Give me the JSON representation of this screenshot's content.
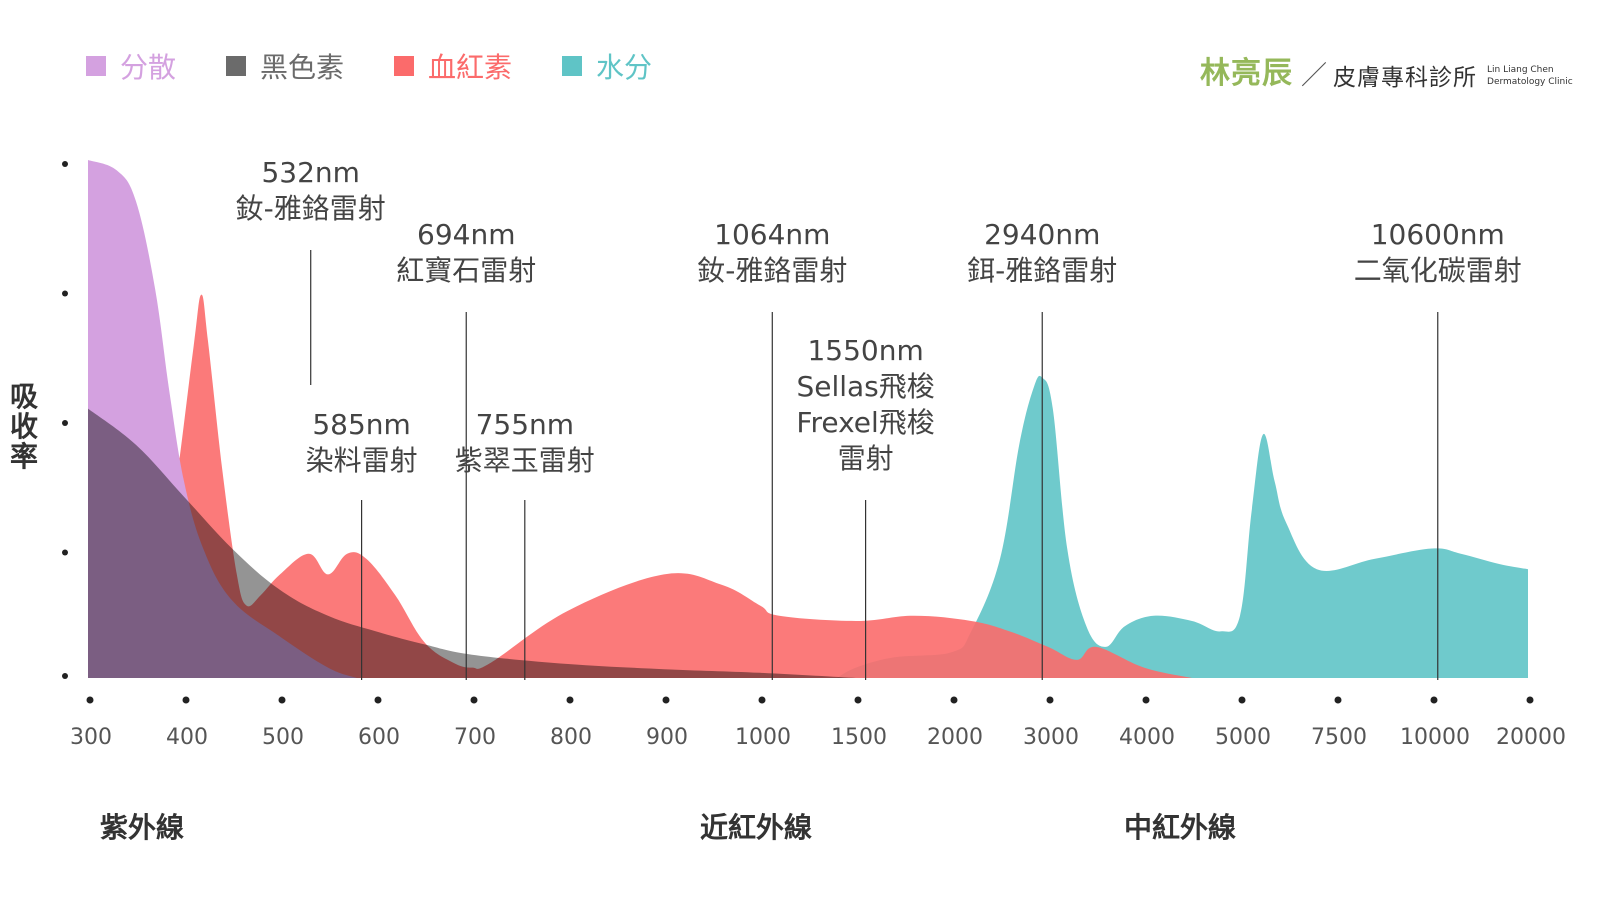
{
  "legend": [
    {
      "label": "分散",
      "color": "#d4a1e0"
    },
    {
      "label": "黑色素",
      "color": "#6b6b6b"
    },
    {
      "label": "血紅素",
      "color": "#fb6b6b"
    },
    {
      "label": "水分",
      "color": "#5fc4c6"
    }
  ],
  "brand": {
    "name": "林亮辰",
    "clinic": "皮膚專科診所",
    "en_line1": "Lin Liang Chen",
    "en_line2": "Dermatology Clinic"
  },
  "ylabel": "吸收率",
  "regions": [
    "紫外線",
    "近紅外線",
    "中紅外線"
  ],
  "chart_data": {
    "type": "area",
    "x_ticks": [
      "300",
      "400",
      "500",
      "600",
      "700",
      "800",
      "900",
      "1000",
      "1500",
      "2000",
      "3000",
      "4000",
      "5000",
      "7500",
      "10000",
      "20000"
    ],
    "x_scale": "piecewise",
    "y_tick_labels": false,
    "series": [
      {
        "name": "分散",
        "color": "#d4a1e0",
        "points": [
          [
            300,
            1.0
          ],
          [
            330,
            0.98
          ],
          [
            350,
            0.92
          ],
          [
            370,
            0.75
          ],
          [
            385,
            0.55
          ],
          [
            400,
            0.38
          ],
          [
            420,
            0.25
          ],
          [
            450,
            0.15
          ],
          [
            500,
            0.08
          ],
          [
            550,
            0.02
          ],
          [
            580,
            0
          ]
        ]
      },
      {
        "name": "黑色素",
        "color": "#6b6b6b",
        "points": [
          [
            300,
            0.52
          ],
          [
            350,
            0.45
          ],
          [
            400,
            0.35
          ],
          [
            450,
            0.25
          ],
          [
            500,
            0.17
          ],
          [
            550,
            0.12
          ],
          [
            600,
            0.09
          ],
          [
            650,
            0.065
          ],
          [
            700,
            0.045
          ],
          [
            800,
            0.027
          ],
          [
            900,
            0.017
          ],
          [
            1000,
            0.01
          ],
          [
            1500,
            0
          ]
        ]
      },
      {
        "name": "血紅素",
        "color": "#fb6b6b",
        "points": [
          [
            300,
            0.16
          ],
          [
            320,
            0.2
          ],
          [
            340,
            0.22
          ],
          [
            360,
            0.2
          ],
          [
            375,
            0.2
          ],
          [
            390,
            0.35
          ],
          [
            410,
            0.64
          ],
          [
            418,
            0.74
          ],
          [
            425,
            0.65
          ],
          [
            440,
            0.4
          ],
          [
            455,
            0.2
          ],
          [
            465,
            0.14
          ],
          [
            480,
            0.16
          ],
          [
            500,
            0.2
          ],
          [
            530,
            0.24
          ],
          [
            550,
            0.2
          ],
          [
            570,
            0.24
          ],
          [
            590,
            0.23
          ],
          [
            620,
            0.16
          ],
          [
            650,
            0.07
          ],
          [
            680,
            0.03
          ],
          [
            700,
            0.02
          ],
          [
            720,
            0.03
          ],
          [
            800,
            0.13
          ],
          [
            900,
            0.2
          ],
          [
            960,
            0.18
          ],
          [
            1000,
            0.14
          ],
          [
            1100,
            0.12
          ],
          [
            1500,
            0.11
          ],
          [
            1800,
            0.12
          ],
          [
            2200,
            0.11
          ],
          [
            2600,
            0.09
          ],
          [
            3000,
            0.06
          ],
          [
            3300,
            0.035
          ],
          [
            3500,
            0.06
          ],
          [
            4000,
            0.02
          ],
          [
            4500,
            0
          ]
        ]
      },
      {
        "name": "水分",
        "color": "#5fc4c6",
        "points": [
          [
            1400,
            0
          ],
          [
            1500,
            0.02
          ],
          [
            1700,
            0.04
          ],
          [
            2000,
            0.05
          ],
          [
            2200,
            0.09
          ],
          [
            2500,
            0.23
          ],
          [
            2700,
            0.45
          ],
          [
            2850,
            0.56
          ],
          [
            2940,
            0.58
          ],
          [
            3050,
            0.52
          ],
          [
            3200,
            0.25
          ],
          [
            3400,
            0.1
          ],
          [
            3600,
            0.06
          ],
          [
            3800,
            0.1
          ],
          [
            4100,
            0.12
          ],
          [
            4500,
            0.11
          ],
          [
            4800,
            0.09
          ],
          [
            5000,
            0.12
          ],
          [
            5300,
            0.32
          ],
          [
            5600,
            0.47
          ],
          [
            5900,
            0.38
          ],
          [
            6200,
            0.3
          ],
          [
            7000,
            0.21
          ],
          [
            8500,
            0.23
          ],
          [
            10000,
            0.25
          ],
          [
            13000,
            0.24
          ],
          [
            17000,
            0.22
          ],
          [
            20000,
            0.21
          ]
        ]
      }
    ],
    "wavelength_markers": [
      {
        "wavelength": 532,
        "lines": [
          "532nm",
          "釹-雅鉻雷射"
        ]
      },
      {
        "wavelength": 585,
        "lines": [
          "585nm",
          "染料雷射"
        ]
      },
      {
        "wavelength": 694,
        "lines": [
          "694nm",
          "紅寶石雷射"
        ]
      },
      {
        "wavelength": 755,
        "lines": [
          "755nm",
          "紫翠玉雷射"
        ]
      },
      {
        "wavelength": 1064,
        "lines": [
          "1064nm",
          "釹-雅鉻雷射"
        ]
      },
      {
        "wavelength": 1550,
        "lines": [
          "1550nm",
          "Sellas飛梭",
          "Frexel飛梭",
          "雷射"
        ]
      },
      {
        "wavelength": 2940,
        "lines": [
          "2940nm",
          "鉺-雅鉻雷射"
        ]
      },
      {
        "wavelength": 10600,
        "lines": [
          "10600nm",
          "二氧化碳雷射"
        ]
      }
    ]
  }
}
